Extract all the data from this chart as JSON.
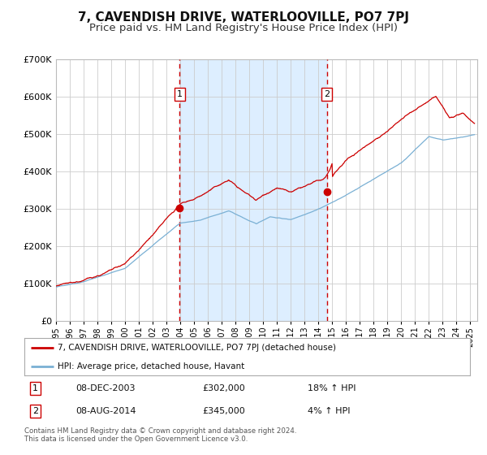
{
  "title": "7, CAVENDISH DRIVE, WATERLOOVILLE, PO7 7PJ",
  "subtitle": "Price paid vs. HM Land Registry's House Price Index (HPI)",
  "ylim": [
    0,
    700000
  ],
  "yticks": [
    0,
    100000,
    200000,
    300000,
    400000,
    500000,
    600000,
    700000
  ],
  "ytick_labels": [
    "£0",
    "£100K",
    "£200K",
    "£300K",
    "£400K",
    "£500K",
    "£600K",
    "£700K"
  ],
  "xlim_start": 1995.0,
  "xlim_end": 2025.5,
  "sale1_date": 2003.94,
  "sale1_price": 302000,
  "sale2_date": 2014.6,
  "sale2_price": 345000,
  "sale1_text": "08-DEC-2003",
  "sale1_amount": "£302,000",
  "sale1_hpi": "18% ↑ HPI",
  "sale2_text": "08-AUG-2014",
  "sale2_amount": "£345,000",
  "sale2_hpi": "4% ↑ HPI",
  "property_line_color": "#cc0000",
  "hpi_line_color": "#7ab0d4",
  "shaded_region_color": "#ddeeff",
  "dashed_line_color": "#cc0000",
  "background_color": "#ffffff",
  "grid_color": "#cccccc",
  "title_fontsize": 11,
  "subtitle_fontsize": 9.5,
  "legend_label1": "7, CAVENDISH DRIVE, WATERLOOVILLE, PO7 7PJ (detached house)",
  "legend_label2": "HPI: Average price, detached house, Havant",
  "footer1": "Contains HM Land Registry data © Crown copyright and database right 2024.",
  "footer2": "This data is licensed under the Open Government Licence v3.0."
}
